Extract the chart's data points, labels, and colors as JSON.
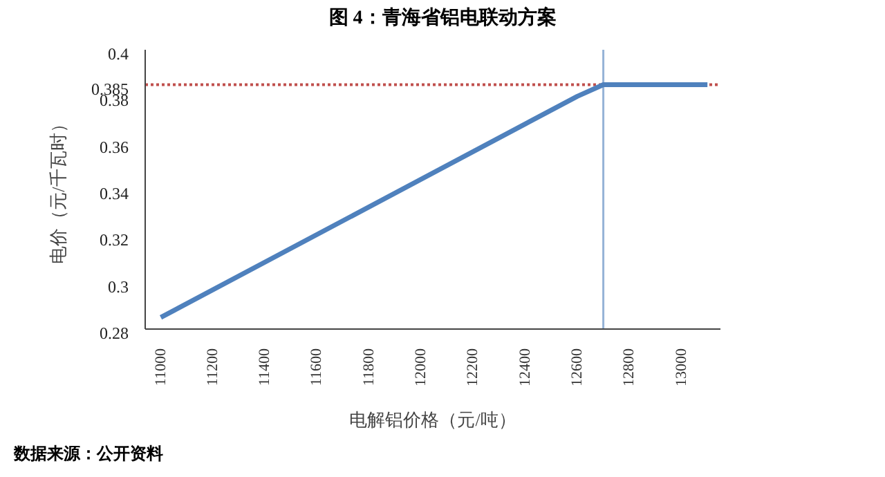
{
  "chart_data": {
    "type": "line",
    "title": "图 4：青海省铝电联动方案",
    "xlabel": "电解铝价格（元/吨）",
    "ylabel": "电价（元/千瓦时）",
    "x": [
      11000,
      12600,
      12700,
      13100
    ],
    "series": [
      {
        "color": "#4f81bd",
        "values": [
          0.285,
          0.38,
          0.385,
          0.385
        ]
      }
    ],
    "xlim": [
      10940,
      13150
    ],
    "xticks": [
      11000,
      11200,
      11400,
      11600,
      11800,
      12000,
      12200,
      12400,
      12600,
      12800,
      13000
    ],
    "ylim": [
      0.28,
      0.4
    ],
    "yticks": [
      0.28,
      0.3,
      0.32,
      0.34,
      0.36,
      0.38,
      0.385,
      0.4
    ],
    "ref_lines": [
      {
        "axis": "y",
        "value": 0.385,
        "color": "#c0504d",
        "line_style": "dotted"
      },
      {
        "axis": "x",
        "value": 12700,
        "color": "#95b3d7",
        "line_style": "solid"
      }
    ],
    "grid": false,
    "legend": false,
    "marker": "none",
    "line_style": "solid",
    "annotations": [
      "数据来源：公开资料"
    ]
  }
}
